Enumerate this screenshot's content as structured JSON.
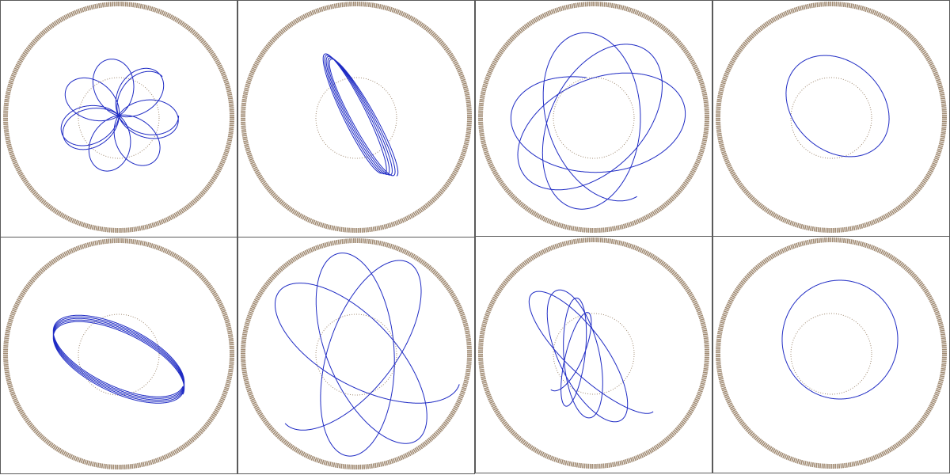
{
  "colors": {
    "background": "#ffffff",
    "panel_border": "#5a5a5a",
    "outer_ring": "#a08a72",
    "inner_circle": "#a08a72",
    "orbit_line": "#1f2bc4"
  },
  "panels": [
    {
      "name": "orbit-panel-1",
      "orbit": "star-rosette"
    },
    {
      "name": "orbit-panel-2",
      "orbit": "narrow-precessing-ellipse"
    },
    {
      "name": "orbit-panel-3",
      "orbit": "large-precessing-ellipses"
    },
    {
      "name": "orbit-panel-4",
      "orbit": "single-ellipse"
    },
    {
      "name": "orbit-panel-5",
      "orbit": "stacked-precessing-ellipse"
    },
    {
      "name": "orbit-panel-6",
      "orbit": "three-lobe-rosette"
    },
    {
      "name": "orbit-panel-7",
      "orbit": "chaotic-loops"
    },
    {
      "name": "orbit-panel-8",
      "orbit": "near-circle"
    }
  ]
}
